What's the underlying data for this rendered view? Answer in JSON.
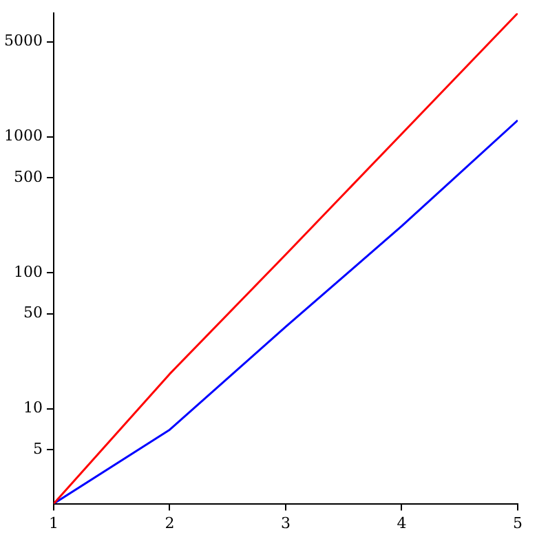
{
  "chart_data": {
    "type": "line",
    "log": "y",
    "x": [
      1,
      2,
      3,
      4,
      5
    ],
    "series": [
      {
        "color": "#ff0000",
        "values": [
          2,
          18,
          136,
          1050,
          8100
        ]
      },
      {
        "color": "#0000ff",
        "values": [
          2,
          7,
          40,
          220,
          1320
        ]
      }
    ],
    "xlim": [
      1,
      5
    ],
    "xticks": [
      1,
      2,
      3,
      4,
      5
    ],
    "ylim": [
      2,
      8100
    ],
    "yticks": [
      5,
      10,
      50,
      100,
      500,
      1000,
      5000
    ],
    "grid": false,
    "legend": false,
    "marker": "none",
    "line_style": "solid"
  }
}
